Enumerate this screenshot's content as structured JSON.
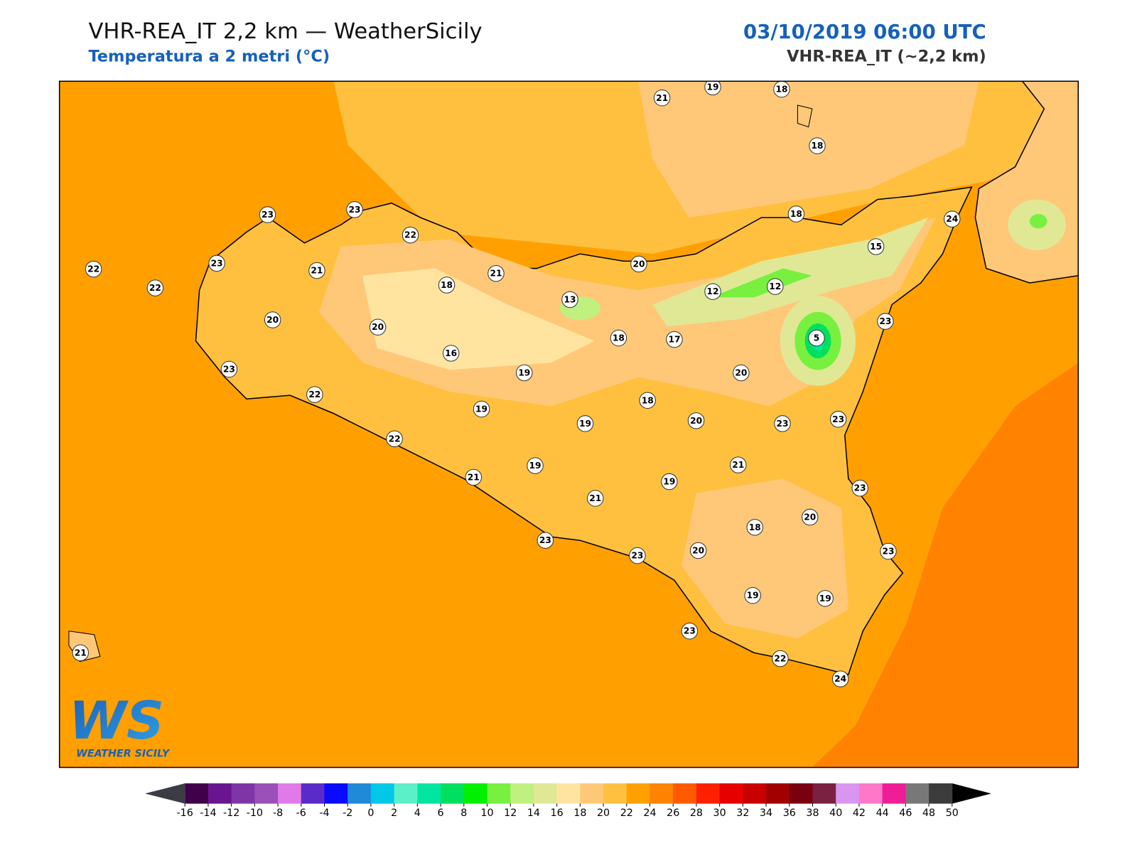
{
  "header": {
    "title": "VHR-REA_IT 2,2 km — WeatherSicily",
    "subtitle": "Temperatura a 2 metri (°C)",
    "datetime": "03/10/2019 06:00 UTC",
    "model": "VHR-REA_IT (~2,2 km)"
  },
  "map": {
    "stations": [
      21,
      19,
      18,
      18,
      23,
      23,
      22,
      18,
      24,
      22,
      23,
      21,
      15,
      22,
      18,
      21,
      20,
      13,
      12,
      12,
      20,
      20,
      23,
      18,
      17,
      5,
      16,
      23,
      19,
      20,
      22,
      18,
      19,
      19,
      20,
      23,
      23,
      22,
      19,
      21,
      21,
      19,
      23,
      21,
      20,
      18,
      23,
      20,
      23,
      23,
      19,
      19,
      23,
      21,
      22,
      24
    ]
  },
  "colorbar": {
    "ticks": [
      -16,
      -14,
      -12,
      -10,
      -8,
      -6,
      -4,
      -2,
      0,
      2,
      4,
      6,
      8,
      10,
      12,
      14,
      16,
      18,
      20,
      22,
      24,
      26,
      28,
      30,
      32,
      34,
      36,
      38,
      40,
      42,
      44,
      46,
      48,
      50
    ],
    "colors": [
      "#40004a",
      "#6a1590",
      "#7f35a6",
      "#9b4fb8",
      "#e07ae8",
      "#5a2bc8",
      "#0a0aff",
      "#1e8ad8",
      "#00c8e6",
      "#5cf0c8",
      "#00e6a0",
      "#00e060",
      "#00f000",
      "#78f040",
      "#c0f080",
      "#e0e896",
      "#ffe4a0",
      "#ffc878",
      "#ffc040",
      "#ffa000",
      "#ff8200",
      "#ff5a00",
      "#ff2000",
      "#e60000",
      "#c80000",
      "#a00000",
      "#780010",
      "#7a2040",
      "#d896f0",
      "#ff78c8",
      "#f01e96",
      "#787878",
      "#3c3c3c"
    ],
    "under": "#3c3c46",
    "over": "#000000"
  },
  "logo": {
    "mark": "WS",
    "text": "WEATHER SICILY"
  }
}
